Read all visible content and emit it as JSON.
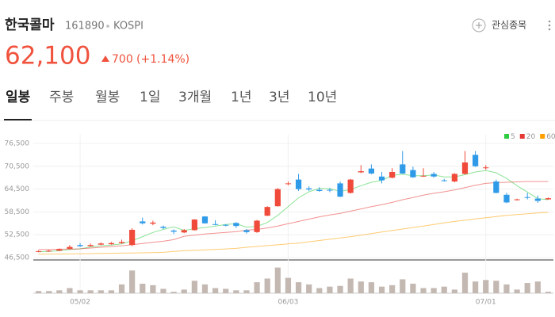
{
  "header": {
    "name": "한국콜마",
    "code": "161890",
    "market": "KOSPI",
    "watch": "관심종목",
    "price": "62,100",
    "change": "700",
    "change_pct": "(+1.14%)"
  },
  "tabs": [
    "일봉",
    "주봉",
    "월봉",
    "1일",
    "3개월",
    "1년",
    "3년",
    "10년"
  ],
  "chart_data": {
    "type": "candlestick",
    "categories": [
      null,
      null,
      null,
      null,
      "05/02",
      null,
      null,
      null,
      null,
      null,
      null,
      null,
      null,
      null,
      null,
      null,
      null,
      null,
      null,
      null,
      null,
      null,
      null,
      null,
      "06/03",
      null,
      null,
      null,
      null,
      null,
      null,
      null,
      null,
      null,
      null,
      null,
      null,
      null,
      null,
      null,
      null,
      null,
      null,
      "07/01",
      null,
      null,
      null,
      null,
      null,
      null
    ],
    "ohlc": [
      [
        48000,
        48400,
        47900,
        48200
      ],
      [
        48100,
        48500,
        48000,
        48300
      ],
      [
        48300,
        48900,
        48200,
        48700
      ],
      [
        48800,
        49800,
        48700,
        49300
      ],
      [
        49800,
        50300,
        49300,
        49500
      ],
      [
        49500,
        50200,
        49400,
        49800
      ],
      [
        49900,
        50500,
        49800,
        50200
      ],
      [
        50000,
        50600,
        49900,
        50300
      ],
      [
        50300,
        51200,
        50100,
        50600
      ],
      [
        49800,
        54200,
        49500,
        53800
      ],
      [
        56000,
        57000,
        55200,
        55500
      ],
      [
        55400,
        56200,
        55000,
        55700
      ],
      [
        54600,
        54900,
        54000,
        54300
      ],
      [
        53600,
        53900,
        52700,
        53300
      ],
      [
        53100,
        54000,
        52900,
        53700
      ],
      [
        53700,
        56600,
        53600,
        56500
      ],
      [
        57300,
        57400,
        55400,
        55500
      ],
      [
        55300,
        56300,
        55000,
        55200
      ],
      [
        55100,
        55300,
        54700,
        55000
      ],
      [
        55600,
        55800,
        54300,
        54800
      ],
      [
        53700,
        54000,
        52800,
        53200
      ],
      [
        53200,
        56400,
        53000,
        56200
      ],
      [
        57500,
        60000,
        57400,
        59800
      ],
      [
        60000,
        64800,
        59900,
        64500
      ],
      [
        65800,
        66500,
        65500,
        66000
      ],
      [
        67000,
        68500,
        64000,
        64500
      ],
      [
        64700,
        65200,
        64000,
        64400
      ],
      [
        64300,
        65000,
        63800,
        64000
      ],
      [
        64300,
        64800,
        63700,
        64200
      ],
      [
        66000,
        66500,
        62400,
        62500
      ],
      [
        63500,
        67200,
        63300,
        67000
      ],
      [
        68900,
        70800,
        68700,
        69200
      ],
      [
        69900,
        71000,
        68400,
        68600
      ],
      [
        67800,
        69000,
        66000,
        66800
      ],
      [
        67500,
        70000,
        67300,
        69000
      ],
      [
        71000,
        74500,
        68500,
        68600
      ],
      [
        69500,
        70400,
        67500,
        67600
      ],
      [
        68000,
        70000,
        67700,
        68000
      ],
      [
        68500,
        69000,
        67500,
        67800
      ],
      [
        66800,
        67200,
        66500,
        66700
      ],
      [
        66500,
        68700,
        66300,
        68500
      ],
      [
        68500,
        74500,
        68300,
        71500
      ],
      [
        73500,
        74500,
        70300,
        70500
      ],
      [
        70000,
        70800,
        69600,
        70200
      ],
      [
        66500,
        67000,
        63400,
        63500
      ],
      [
        63000,
        63500,
        60800,
        61000
      ],
      [
        61700,
        62000,
        61500,
        61800
      ],
      [
        62400,
        63500,
        61800,
        62200
      ],
      [
        62000,
        62800,
        60900,
        61400
      ],
      [
        61800,
        62300,
        61700,
        62100
      ]
    ],
    "up_color": "#f04a3a",
    "down_color": "#2f9be8",
    "series": [
      {
        "name": "5",
        "color": "#2ecc40",
        "values": [
          48000,
          48100,
          48300,
          48600,
          48800,
          49300,
          49600,
          49800,
          50100,
          50900,
          52000,
          53100,
          53900,
          54600,
          53600,
          54100,
          54400,
          54800,
          55200,
          55400,
          54500,
          54700,
          55700,
          57600,
          59900,
          62200,
          63800,
          64700,
          64600,
          63900,
          64400,
          65400,
          66300,
          66800,
          68100,
          68400,
          68000,
          68000,
          68200,
          67700,
          67700,
          68300,
          69000,
          69400,
          68800,
          67300,
          65400,
          63700,
          62000,
          61700
        ]
      },
      {
        "name": "20",
        "color": "#e53935",
        "values": [
          48600,
          48600,
          48700,
          48700,
          48800,
          49000,
          49200,
          49400,
          49600,
          49900,
          50200,
          50500,
          50800,
          51200,
          52100,
          52400,
          52700,
          52900,
          53100,
          53300,
          53700,
          53900,
          54300,
          54800,
          55400,
          56000,
          56600,
          57200,
          57700,
          58100,
          58700,
          59300,
          59900,
          60400,
          61000,
          61700,
          62300,
          62900,
          63400,
          63800,
          64300,
          64900,
          65500,
          66000,
          66200,
          66300,
          66400,
          66500,
          66500,
          66500
        ]
      },
      {
        "name": "60",
        "color": "#ffa000",
        "values": [
          47400,
          47420,
          47440,
          47460,
          47480,
          47540,
          47580,
          47620,
          47660,
          47700,
          47760,
          47820,
          47880,
          48100,
          48300,
          48400,
          48500,
          48640,
          48780,
          48920,
          49200,
          49420,
          49640,
          49860,
          50080,
          50300,
          50640,
          50980,
          51320,
          51660,
          52000,
          52400,
          52800,
          53200,
          53600,
          54000,
          54400,
          54800,
          55200,
          55600,
          56000,
          56320,
          56640,
          56960,
          57280,
          57600,
          57800,
          58000,
          58200,
          58400
        ]
      }
    ],
    "volume": [
      3,
      3,
      4,
      7,
      4,
      4,
      4,
      4,
      12,
      31,
      13,
      11,
      6,
      2,
      5,
      17,
      12,
      7,
      6,
      4,
      4,
      15,
      20,
      35,
      21,
      15,
      12,
      7,
      9,
      10,
      20,
      16,
      15,
      9,
      11,
      19,
      13,
      7,
      7,
      9,
      5,
      28,
      16,
      18,
      17,
      12,
      5,
      14,
      16,
      2
    ],
    "volume_ylim": [
      0,
      40
    ],
    "volume_color": "#c4b8b2",
    "ylim": [
      46500,
      76500
    ],
    "yticks": [
      {
        "value": 46500,
        "label": "46,500"
      },
      {
        "value": 52500,
        "label": "52,500"
      },
      {
        "value": 58500,
        "label": "58,500"
      },
      {
        "value": 64500,
        "label": "64,500"
      },
      {
        "value": 70500,
        "label": "70,500"
      },
      {
        "value": 76500,
        "label": "76,500"
      }
    ],
    "grid": true
  }
}
